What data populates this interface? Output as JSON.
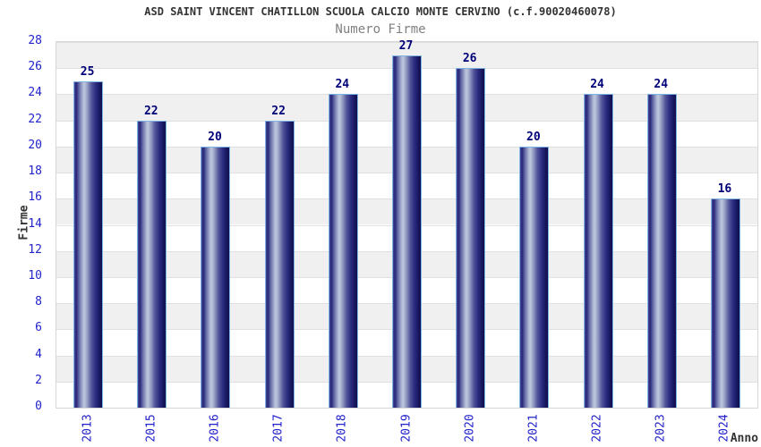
{
  "title": "ASD SAINT VINCENT CHATILLON SCUOLA CALCIO MONTE CERVINO (c.f.90020460078)",
  "subtitle": "Numero Firme",
  "chart_data": {
    "type": "bar",
    "categories": [
      "2013",
      "2015",
      "2016",
      "2017",
      "2018",
      "2019",
      "2020",
      "2021",
      "2022",
      "2023",
      "2024"
    ],
    "values": [
      25,
      22,
      20,
      22,
      24,
      27,
      26,
      20,
      24,
      24,
      16
    ],
    "title": "ASD SAINT VINCENT CHATILLON SCUOLA CALCIO MONTE CERVINO (c.f.90020460078)",
    "subtitle": "Numero Firme",
    "xlabel": "Anno",
    "ylabel": "Firme",
    "ylim": [
      0,
      28
    ],
    "ytick_step": 2,
    "yticks": [
      0,
      2,
      4,
      6,
      8,
      10,
      12,
      14,
      16,
      18,
      20,
      22,
      24,
      26,
      28
    ],
    "grid": true,
    "legend": false,
    "bands_alternating": true
  },
  "colors": {
    "bar_border": "#7fb4e2",
    "bar_dark": "#10104e",
    "bar_highlight": "#bfc7de",
    "tick_label": "#2222cc",
    "value_label": "#000078",
    "axis_title": "#333333",
    "subtitle": "#808080",
    "band_gray": "#f0f0f0",
    "grid_line": "#e0e0e0"
  }
}
